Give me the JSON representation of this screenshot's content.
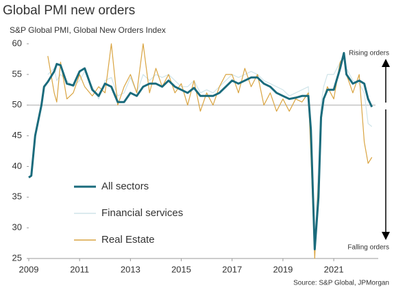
{
  "chart_data": {
    "type": "line",
    "title": "Global PMI new orders",
    "subtitle": "S&P Global PMI, Global New Orders Index",
    "source": "Source: S&P Global, JPMorgan",
    "annotations": [
      "Rising orders",
      "Falling orders"
    ],
    "x": [
      2009.0,
      2009.1,
      2009.25,
      2009.5,
      2009.6,
      2009.75,
      2010.0,
      2010.1,
      2010.25,
      2010.5,
      2010.75,
      2011.0,
      2011.2,
      2011.5,
      2011.75,
      2012.0,
      2012.25,
      2012.5,
      2012.75,
      2013.0,
      2013.25,
      2013.5,
      2013.75,
      2014.0,
      2014.25,
      2014.5,
      2014.75,
      2015.0,
      2015.25,
      2015.5,
      2015.75,
      2016.0,
      2016.25,
      2016.5,
      2016.75,
      2017.0,
      2017.25,
      2017.5,
      2017.75,
      2018.0,
      2018.25,
      2018.5,
      2018.75,
      2019.0,
      2019.25,
      2019.5,
      2019.75,
      2020.0,
      2020.1,
      2020.25,
      2020.4,
      2020.5,
      2020.6,
      2020.75,
      2021.0,
      2021.25,
      2021.4,
      2021.5,
      2021.75,
      2022.0,
      2022.2,
      2022.35,
      2022.5
    ],
    "series": [
      {
        "name": "All sectors",
        "color": "#1a6b7c",
        "values": [
          38.2,
          38.5,
          45,
          50,
          53,
          53.8,
          55.5,
          56.7,
          56.5,
          53.5,
          53.2,
          55.5,
          56,
          52.5,
          51.5,
          53.5,
          53,
          50.5,
          50.5,
          52,
          51.5,
          53,
          53.5,
          53.5,
          53,
          54,
          53,
          52.5,
          52,
          52.8,
          51.5,
          51.5,
          51.5,
          52,
          53,
          54,
          53.5,
          54,
          54.5,
          54.5,
          53.5,
          53,
          52,
          51.5,
          51,
          51.2,
          51.5,
          51.5,
          46,
          26.5,
          35,
          48,
          51,
          52.5,
          52.5,
          56,
          58.5,
          55,
          53.5,
          54,
          53.5,
          51,
          49.7
        ]
      },
      {
        "name": "Financial services",
        "color": "#cfe4e9",
        "values": [
          null,
          null,
          null,
          null,
          null,
          55,
          56,
          54,
          55,
          54,
          53,
          54,
          55.5,
          53,
          51,
          54,
          54.5,
          51.5,
          52,
          54.5,
          52,
          55,
          54,
          55,
          54.5,
          55,
          54,
          53,
          53,
          54,
          52,
          52.5,
          52,
          53,
          54,
          55,
          54.5,
          55,
          55.5,
          55,
          54,
          53.5,
          53,
          52.5,
          51.5,
          52,
          52.5,
          53,
          45,
          27,
          40,
          50,
          53,
          55,
          55,
          57,
          58,
          56,
          54,
          53.5,
          52,
          47,
          46.5
        ]
      },
      {
        "name": "Real Estate",
        "color": "#d9a441",
        "values": [
          null,
          null,
          null,
          null,
          null,
          58,
          52,
          50.5,
          57,
          51,
          52,
          55,
          53,
          51.5,
          53,
          52,
          60,
          50,
          53,
          55,
          52,
          60,
          52,
          56,
          53,
          55,
          52,
          53.5,
          50,
          54,
          49,
          52,
          50,
          53,
          55,
          55,
          52,
          56,
          53,
          55,
          50,
          52,
          49,
          51,
          49,
          51,
          50.5,
          52,
          42,
          25,
          38,
          47,
          51,
          53,
          51,
          57,
          58,
          55,
          52,
          55,
          44,
          40.5,
          41.5
        ]
      }
    ],
    "xlim": [
      2009,
      2022.75
    ],
    "xticks": [
      2009,
      2011,
      2013,
      2015,
      2017,
      2019,
      2021
    ],
    "ylim": [
      25,
      60
    ],
    "yticks": [
      25,
      30,
      35,
      40,
      45,
      50,
      55,
      60
    ],
    "hline": 50
  }
}
